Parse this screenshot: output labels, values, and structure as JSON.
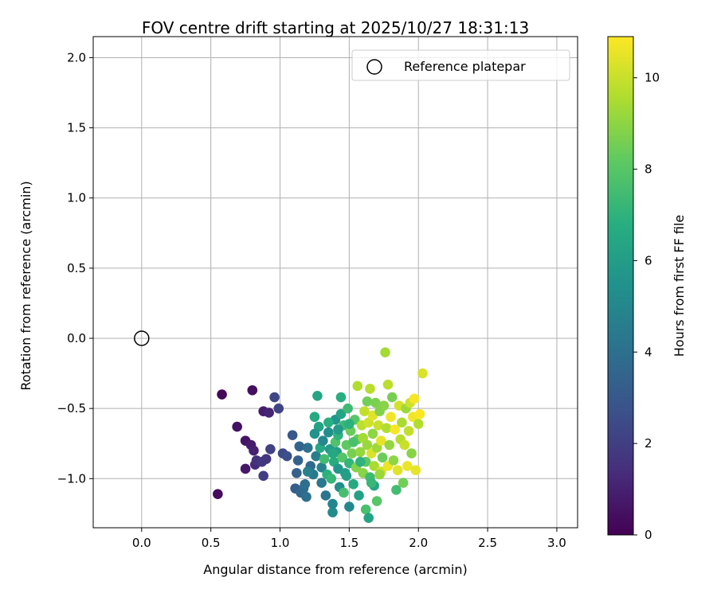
{
  "chart_data": {
    "type": "scatter",
    "title": "FOV centre drift starting at 2025/10/27 18:31:13",
    "xlabel": "Angular distance from reference (arcmin)",
    "ylabel": "Rotation from reference (arcmin)",
    "xlim": [
      -0.35,
      3.15
    ],
    "ylim": [
      -1.35,
      2.15
    ],
    "xticks": [
      "0.0",
      "0.5",
      "1.0",
      "1.5",
      "2.0",
      "2.5",
      "3.0"
    ],
    "yticks": [
      "−1.0",
      "−0.5",
      "0.0",
      "0.5",
      "1.0",
      "1.5",
      "2.0"
    ],
    "grid": true,
    "legend": {
      "placement": "top-right",
      "label": "Reference platepar"
    },
    "reference_point": {
      "x": 0.0,
      "y": 0.0
    },
    "colorbar": {
      "label": "Hours from first FF file",
      "range": [
        0,
        10.9
      ],
      "ticks": [
        "0",
        "2",
        "4",
        "6",
        "8",
        "10"
      ],
      "colormap": "viridis"
    },
    "points": [
      [
        0.55,
        -1.11,
        0.3
      ],
      [
        0.58,
        -0.4,
        0.2
      ],
      [
        0.69,
        -0.63,
        0.5
      ],
      [
        0.75,
        -0.93,
        0.7
      ],
      [
        0.75,
        -0.73,
        0.6
      ],
      [
        0.79,
        -0.76,
        0.8
      ],
      [
        0.8,
        -0.37,
        0.4
      ],
      [
        0.81,
        -0.8,
        1.0
      ],
      [
        0.82,
        -0.9,
        1.3
      ],
      [
        0.83,
        -0.87,
        1.5
      ],
      [
        0.87,
        -0.88,
        1.8
      ],
      [
        0.88,
        -0.52,
        0.9
      ],
      [
        0.88,
        -0.98,
        2.0
      ],
      [
        0.9,
        -0.86,
        1.7
      ],
      [
        0.92,
        -0.53,
        1.1
      ],
      [
        0.93,
        -0.79,
        2.1
      ],
      [
        0.96,
        -0.42,
        2.3
      ],
      [
        0.99,
        -0.5,
        2.2
      ],
      [
        1.02,
        -0.82,
        2.4
      ],
      [
        1.05,
        -0.84,
        2.6
      ],
      [
        1.09,
        -0.69,
        3.0
      ],
      [
        1.11,
        -1.07,
        3.2
      ],
      [
        1.12,
        -0.96,
        3.3
      ],
      [
        1.13,
        -0.87,
        3.4
      ],
      [
        1.15,
        -1.1,
        3.6
      ],
      [
        1.14,
        -0.77,
        3.5
      ],
      [
        1.17,
        -1.07,
        3.8
      ],
      [
        1.18,
        -1.04,
        3.9
      ],
      [
        1.19,
        -1.13,
        4.0
      ],
      [
        1.2,
        -0.78,
        4.1
      ],
      [
        1.22,
        -0.91,
        3.7
      ],
      [
        1.24,
        -0.97,
        4.4
      ],
      [
        1.25,
        -0.56,
        6.6
      ],
      [
        1.26,
        -0.84,
        4.6
      ],
      [
        1.27,
        -0.41,
        6.4
      ],
      [
        1.28,
        -0.63,
        6.2
      ],
      [
        1.29,
        -0.78,
        6.5
      ],
      [
        1.3,
        -0.92,
        4.8
      ],
      [
        1.3,
        -1.03,
        4.3
      ],
      [
        1.31,
        -0.73,
        5.0
      ],
      [
        1.32,
        -0.86,
        7.5
      ],
      [
        1.33,
        -1.12,
        4.2
      ],
      [
        1.34,
        -0.97,
        6.9
      ],
      [
        1.35,
        -0.67,
        5.4
      ],
      [
        1.36,
        -0.79,
        5.9
      ],
      [
        1.37,
        -1.0,
        7.2
      ],
      [
        1.38,
        -1.24,
        5.2
      ],
      [
        1.38,
        -1.18,
        4.9
      ],
      [
        1.39,
        -0.88,
        6.7
      ],
      [
        1.4,
        -0.58,
        5.6
      ],
      [
        1.4,
        -0.74,
        7.8
      ],
      [
        1.41,
        -0.81,
        6.1
      ],
      [
        1.42,
        -0.93,
        5.7
      ],
      [
        1.42,
        -0.69,
        7.0
      ],
      [
        1.43,
        -1.06,
        5.3
      ],
      [
        1.44,
        -0.42,
        6.8
      ],
      [
        1.44,
        -0.54,
        6.3
      ],
      [
        1.45,
        -0.85,
        7.9
      ],
      [
        1.46,
        -1.1,
        7.6
      ],
      [
        1.46,
        -0.62,
        7.3
      ],
      [
        1.47,
        -0.96,
        6.0
      ],
      [
        1.48,
        -0.76,
        8.2
      ],
      [
        1.49,
        -0.5,
        7.4
      ],
      [
        1.5,
        -1.2,
        5.1
      ],
      [
        1.5,
        -0.89,
        7.1
      ],
      [
        1.51,
        -0.66,
        8.4
      ],
      [
        1.52,
        -0.82,
        8.6
      ],
      [
        1.53,
        -1.04,
        6.6
      ],
      [
        1.54,
        -0.58,
        8.0
      ],
      [
        1.55,
        -0.92,
        8.8
      ],
      [
        1.56,
        -0.72,
        8.3
      ],
      [
        1.56,
        -0.34,
        9.6
      ],
      [
        1.57,
        -1.12,
        6.2
      ],
      [
        1.58,
        -0.81,
        9.1
      ],
      [
        1.59,
        -0.62,
        9.8
      ],
      [
        1.6,
        -0.96,
        8.9
      ],
      [
        1.6,
        -0.71,
        9.4
      ],
      [
        1.61,
        -0.52,
        9.9
      ],
      [
        1.62,
        -1.22,
        7.7
      ],
      [
        1.62,
        -0.88,
        8.1
      ],
      [
        1.63,
        -0.45,
        8.5
      ],
      [
        1.63,
        -0.76,
        9.2
      ],
      [
        1.64,
        -1.28,
        6.3
      ],
      [
        1.64,
        -0.6,
        10.1
      ],
      [
        1.65,
        -0.99,
        7.4
      ],
      [
        1.65,
        -0.36,
        9.7
      ],
      [
        1.66,
        -0.82,
        10.3
      ],
      [
        1.67,
        -0.55,
        10.4
      ],
      [
        1.67,
        -0.68,
        9.0
      ],
      [
        1.68,
        -1.05,
        6.4
      ],
      [
        1.68,
        -0.91,
        9.5
      ],
      [
        1.69,
        -0.46,
        8.7
      ],
      [
        1.7,
        -1.16,
        8.0
      ],
      [
        1.7,
        -0.78,
        9.3
      ],
      [
        1.71,
        -0.62,
        10.0
      ],
      [
        1.72,
        -0.52,
        8.8
      ],
      [
        1.73,
        -0.95,
        10.2
      ],
      [
        1.73,
        -0.73,
        10.5
      ],
      [
        1.74,
        -0.85,
        8.4
      ],
      [
        1.75,
        -0.48,
        8.9
      ],
      [
        1.76,
        -0.1,
        9.4
      ],
      [
        1.77,
        -0.64,
        9.6
      ],
      [
        1.78,
        -0.91,
        10.6
      ],
      [
        1.78,
        -0.33,
        9.8
      ],
      [
        1.79,
        -0.76,
        9.1
      ],
      [
        1.8,
        -0.56,
        10.7
      ],
      [
        1.81,
        -0.42,
        8.6
      ],
      [
        1.82,
        -0.87,
        9.0
      ],
      [
        1.83,
        -0.65,
        10.8
      ],
      [
        1.84,
        -1.08,
        7.5
      ],
      [
        1.85,
        -0.94,
        10.4
      ],
      [
        1.86,
        -0.48,
        10.2
      ],
      [
        1.87,
        -0.72,
        9.7
      ],
      [
        1.88,
        -0.6,
        9.5
      ],
      [
        1.89,
        -1.03,
        8.5
      ],
      [
        1.9,
        -0.76,
        10.0
      ],
      [
        1.91,
        -0.5,
        9.3
      ],
      [
        1.92,
        -0.91,
        10.6
      ],
      [
        1.93,
        -0.66,
        9.9
      ],
      [
        1.94,
        -0.46,
        10.1
      ],
      [
        1.95,
        -0.82,
        8.9
      ],
      [
        1.96,
        -0.56,
        10.7
      ],
      [
        1.97,
        -0.43,
        10.8
      ],
      [
        1.98,
        -0.94,
        10.5
      ],
      [
        2.0,
        -0.61,
        9.6
      ],
      [
        2.01,
        -0.54,
        10.9
      ],
      [
        2.03,
        -0.25,
        10.3
      ],
      [
        1.35,
        -0.6,
        6.8
      ],
      [
        1.42,
        -0.65,
        5.9
      ],
      [
        1.48,
        -0.98,
        6.1
      ],
      [
        1.53,
        -0.74,
        7.7
      ],
      [
        1.58,
        -0.88,
        7.0
      ],
      [
        1.25,
        -0.68,
        5.5
      ],
      [
        1.2,
        -0.95,
        4.7
      ],
      [
        1.66,
        -1.03,
        7.2
      ],
      [
        1.72,
        -0.97,
        9.2
      ],
      [
        1.5,
        -0.61,
        6.9
      ],
      [
        1.38,
        -0.82,
        6.5
      ]
    ]
  }
}
